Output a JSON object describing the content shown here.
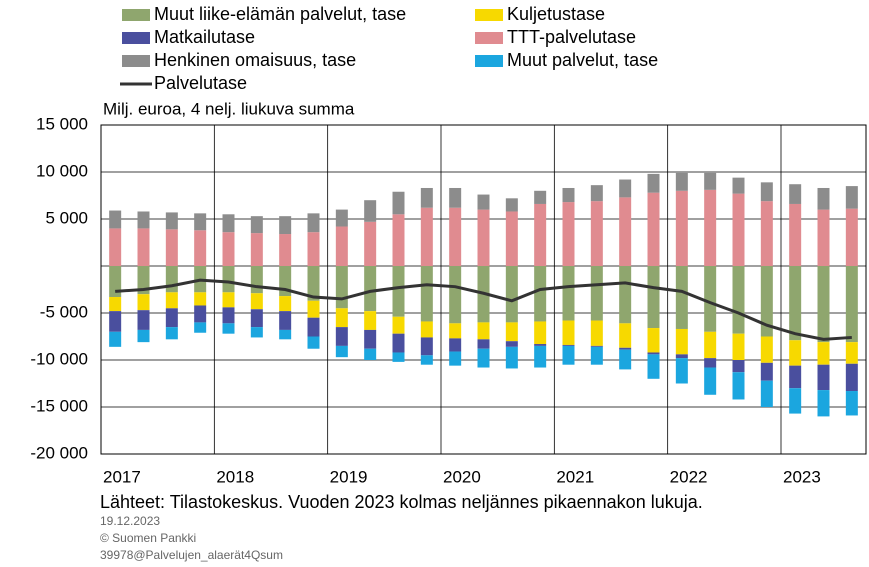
{
  "chart_data": {
    "type": "bar",
    "stacked": true,
    "subtitle": "Milj. euroa, 4 nelj. liukuva summa",
    "source": "Lähteet: Tilastokeskus. Vuoden 2023 kolmas neljännes pikaennakon lukuja.",
    "date": "19.12.2023",
    "copyright": "© Suomen Pankki",
    "code": "39978@Palvelujen_alaerät4Qsum",
    "categories": [
      "2017",
      null,
      null,
      null,
      "2018",
      null,
      null,
      null,
      "2019",
      null,
      null,
      null,
      "2020",
      null,
      null,
      null,
      "2021",
      null,
      null,
      null,
      "2022",
      null,
      null,
      null,
      "2023",
      null,
      null
    ],
    "ylim": [
      -20000,
      15000
    ],
    "yticks": [
      {
        "value": 15000,
        "label": "15 000"
      },
      {
        "value": 10000,
        "label": "10 000"
      },
      {
        "value": 5000,
        "label": "5 000"
      },
      {
        "value": -5000,
        "label": "-5 000"
      },
      {
        "value": -10000,
        "label": "-10 000"
      },
      {
        "value": -15000,
        "label": "-15 000"
      },
      {
        "value": -20000,
        "label": "-20 000"
      }
    ],
    "grid": true,
    "series": [
      {
        "name": "Muut liike-elämän palvelut, tase",
        "color": "#8fa66e",
        "values": [
          -3300,
          -3000,
          -2800,
          -2800,
          -2800,
          -2900,
          -3200,
          -3700,
          -4500,
          -4800,
          -5400,
          -5900,
          -6100,
          -6000,
          -6000,
          -5900,
          -5800,
          -5800,
          -6100,
          -6600,
          -6700,
          -7000,
          -7200,
          -7500,
          -7900,
          -8100,
          -8100
        ]
      },
      {
        "name": "Kuljetustase",
        "color": "#f7d900",
        "values": [
          -1500,
          -1700,
          -1700,
          -1400,
          -1600,
          -1700,
          -1600,
          -1800,
          -2000,
          -2000,
          -1800,
          -1700,
          -1600,
          -1800,
          -2000,
          -2400,
          -2600,
          -2700,
          -2600,
          -2600,
          -2700,
          -2800,
          -2800,
          -2800,
          -2700,
          -2400,
          -2300
        ]
      },
      {
        "name": "Matkailutase",
        "color": "#4a4f9e",
        "values": [
          -2200,
          -2100,
          -2000,
          -1800,
          -1700,
          -1900,
          -2000,
          -2000,
          -2000,
          -2000,
          -2000,
          -1900,
          -1400,
          -1000,
          -600,
          -200,
          -100,
          -100,
          -200,
          -200,
          -400,
          -1000,
          -1300,
          -1900,
          -2400,
          -2700,
          -2900
        ]
      },
      {
        "name": "TTT-palvelutase",
        "color": "#e08b90",
        "values": [
          4000,
          4000,
          3900,
          3800,
          3600,
          3500,
          3400,
          3600,
          4200,
          4700,
          5500,
          6200,
          6200,
          6000,
          5800,
          6600,
          6800,
          6900,
          7300,
          7800,
          8000,
          8100,
          7700,
          6900,
          6600,
          6000,
          6100
        ]
      },
      {
        "name": "Henkinen omaisuus, tase",
        "color": "#8c8c8c",
        "values": [
          1900,
          1800,
          1800,
          1800,
          1900,
          1800,
          1900,
          2000,
          1800,
          2300,
          2400,
          2100,
          2100,
          1600,
          1400,
          1400,
          1500,
          1700,
          1900,
          2000,
          1900,
          1800,
          1700,
          2000,
          2100,
          2300,
          2400
        ]
      },
      {
        "name": "Muut palvelut, tase",
        "color": "#1ba6df",
        "values": [
          -1600,
          -1300,
          -1300,
          -1100,
          -1100,
          -1100,
          -1000,
          -1300,
          -1200,
          -1200,
          -1000,
          -1000,
          -1500,
          -2000,
          -2300,
          -2300,
          -2000,
          -1900,
          -2100,
          -2600,
          -2700,
          -2900,
          -2900,
          -2800,
          -2700,
          -2800,
          -2600
        ]
      },
      {
        "name": "Palvelutase",
        "color": "#333333",
        "type": "line",
        "values": [
          -2700,
          -2500,
          -2100,
          -1500,
          -1700,
          -2200,
          -2500,
          -3300,
          -3500,
          -2700,
          -2300,
          -2000,
          -2200,
          -2900,
          -3700,
          -2500,
          -2200,
          -2000,
          -1800,
          -2300,
          -2700,
          -3900,
          -5000,
          -6300,
          -7200,
          -7800,
          -7600
        ]
      }
    ]
  }
}
